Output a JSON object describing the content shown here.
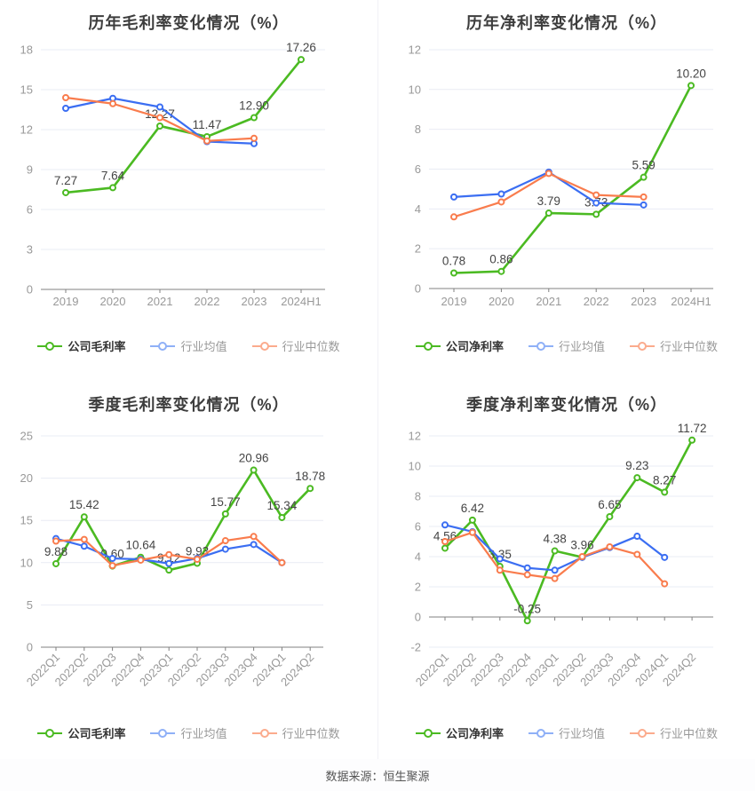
{
  "page": {
    "caption": "数据来源：恒生聚源"
  },
  "colors": {
    "company": "#4bba22",
    "industry_avg": "#3b6ef2",
    "industry_median": "#f97c4d",
    "legend": {
      "company": "#4bba22",
      "industry_avg": "#8fb0f7",
      "industry_median": "#fbab8d"
    },
    "grid": "#e9ecf4",
    "axis": "#808080",
    "tick_label": "#999999",
    "value_label": "#454545",
    "title": "#3d3d3d"
  },
  "chart_data": [
    {
      "type": "line",
      "title": "历年毛利率变化情况（%）",
      "categories": [
        "2019",
        "2020",
        "2021",
        "2022",
        "2023",
        "2024H1"
      ],
      "yticks": [
        0,
        3,
        6,
        9,
        12,
        15,
        18
      ],
      "ylim": [
        0,
        18
      ],
      "legend_position": "bottom",
      "series": [
        {
          "name": "公司毛利率",
          "color_key": "company",
          "values": [
            7.27,
            7.64,
            12.27,
            11.47,
            12.9,
            17.26
          ],
          "value_labels": [
            "7.27",
            "7.64",
            "12.27",
            "11.47",
            "12.90",
            "17.26"
          ]
        },
        {
          "name": "行业均值",
          "color_key": "industry_avg",
          "values": [
            13.6,
            14.35,
            13.7,
            11.1,
            10.95
          ]
        },
        {
          "name": "行业中位数",
          "color_key": "industry_median",
          "values": [
            14.4,
            13.95,
            12.9,
            11.15,
            11.35
          ]
        }
      ]
    },
    {
      "type": "line",
      "title": "历年净利率变化情况（%）",
      "categories": [
        "2019",
        "2020",
        "2021",
        "2022",
        "2023",
        "2024H1"
      ],
      "yticks": [
        0,
        2,
        4,
        6,
        8,
        10,
        12
      ],
      "ylim": [
        0,
        12
      ],
      "legend_position": "bottom",
      "series": [
        {
          "name": "公司净利率",
          "color_key": "company",
          "values": [
            0.78,
            0.86,
            3.79,
            3.73,
            5.59,
            10.2
          ],
          "value_labels": [
            "0.78",
            "0.86",
            "3.79",
            "3.73",
            "5.59",
            "10.20"
          ]
        },
        {
          "name": "行业均值",
          "color_key": "industry_avg",
          "values": [
            4.6,
            4.75,
            5.85,
            4.3,
            4.2
          ]
        },
        {
          "name": "行业中位数",
          "color_key": "industry_median",
          "values": [
            3.6,
            4.35,
            5.78,
            4.7,
            4.6
          ]
        }
      ]
    },
    {
      "type": "line",
      "title": "季度毛利率变化情况（%）",
      "categories": [
        "2022Q1",
        "2022Q2",
        "2022Q3",
        "2022Q4",
        "2023Q1",
        "2023Q2",
        "2023Q3",
        "2023Q4",
        "2024Q1",
        "2024Q2"
      ],
      "yticks": [
        0,
        5,
        10,
        15,
        20,
        25
      ],
      "ylim": [
        0,
        25
      ],
      "legend_position": "bottom",
      "series": [
        {
          "name": "公司毛利率",
          "color_key": "company",
          "values": [
            9.88,
            15.42,
            9.6,
            10.64,
            9.12,
            9.93,
            15.77,
            20.96,
            15.34,
            18.78
          ],
          "value_labels": [
            "9.88",
            "15.42",
            "9.60",
            "10.64",
            "9.12",
            "9.93",
            "15.77",
            "20.96",
            "15.34",
            "18.78"
          ]
        },
        {
          "name": "行业均值",
          "color_key": "industry_avg",
          "values": [
            12.85,
            11.95,
            10.5,
            10.4,
            9.9,
            10.5,
            11.6,
            12.15,
            10.0
          ]
        },
        {
          "name": "行业中位数",
          "color_key": "industry_median",
          "values": [
            12.55,
            12.75,
            9.65,
            10.3,
            10.95,
            10.4,
            12.6,
            13.1,
            10.0
          ]
        }
      ]
    },
    {
      "type": "line",
      "title": "季度净利率变化情况（%）",
      "categories": [
        "2022Q1",
        "2022Q2",
        "2022Q3",
        "2022Q4",
        "2023Q1",
        "2023Q2",
        "2023Q3",
        "2023Q4",
        "2024Q1",
        "2024Q2"
      ],
      "yticks": [
        -2,
        0,
        2,
        4,
        6,
        8,
        10,
        12
      ],
      "ylim": [
        -2,
        12
      ],
      "legend_position": "bottom",
      "series": [
        {
          "name": "公司净利率",
          "color_key": "company",
          "values": [
            4.56,
            6.42,
            3.35,
            -0.25,
            4.38,
            3.96,
            6.65,
            9.23,
            8.27,
            11.72
          ],
          "value_labels": [
            "4.56",
            "6.42",
            "3.35",
            "-0.25",
            "4.38",
            "3.96",
            "6.65",
            "9.23",
            "8.27",
            "11.72"
          ]
        },
        {
          "name": "行业均值",
          "color_key": "industry_avg",
          "values": [
            6.1,
            5.65,
            3.85,
            3.25,
            3.1,
            3.95,
            4.6,
            5.35,
            3.95
          ]
        },
        {
          "name": "行业中位数",
          "color_key": "industry_median",
          "values": [
            5.0,
            5.6,
            3.1,
            2.8,
            2.55,
            4.0,
            4.65,
            4.15,
            2.2
          ]
        }
      ]
    }
  ]
}
